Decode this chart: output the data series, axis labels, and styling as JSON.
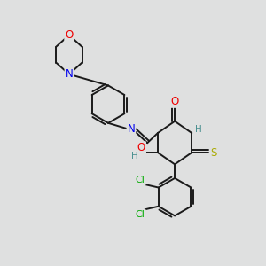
{
  "bg_color": "#dfe0e0",
  "bond_color": "#1a1a1a",
  "bond_width": 1.4,
  "atom_colors": {
    "N": "#0000ee",
    "O": "#ee0000",
    "S": "#aaaa00",
    "Cl": "#00aa00",
    "H": "#4a9090",
    "C": "#1a1a1a"
  },
  "figsize": [
    3.0,
    3.0
  ],
  "dpi": 100
}
